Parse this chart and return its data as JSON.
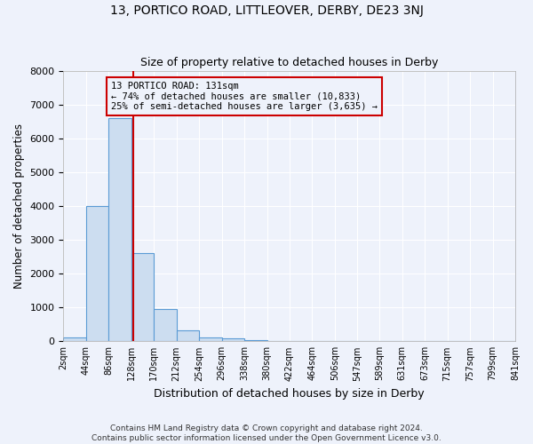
{
  "title": "13, PORTICO ROAD, LITTLEOVER, DERBY, DE23 3NJ",
  "subtitle": "Size of property relative to detached houses in Derby",
  "xlabel": "Distribution of detached houses by size in Derby",
  "ylabel": "Number of detached properties",
  "footer_line1": "Contains HM Land Registry data © Crown copyright and database right 2024.",
  "footer_line2": "Contains public sector information licensed under the Open Government Licence v3.0.",
  "bin_labels": [
    "2sqm",
    "44sqm",
    "86sqm",
    "128sqm",
    "170sqm",
    "212sqm",
    "254sqm",
    "296sqm",
    "338sqm",
    "380sqm",
    "422sqm",
    "464sqm",
    "506sqm",
    "547sqm",
    "589sqm",
    "631sqm",
    "673sqm",
    "715sqm",
    "757sqm",
    "799sqm",
    "841sqm"
  ],
  "bin_edges": [
    2,
    44,
    86,
    128,
    170,
    212,
    254,
    296,
    338,
    380,
    422,
    464,
    506,
    547,
    589,
    631,
    673,
    715,
    757,
    799,
    841
  ],
  "bar_heights": [
    100,
    4000,
    6600,
    2600,
    950,
    320,
    120,
    80,
    30,
    15,
    8,
    4,
    2,
    1,
    1,
    1,
    0,
    0,
    0,
    0
  ],
  "bar_color": "#ccddf0",
  "bar_edge_color": "#5b9bd5",
  "property_size": 131,
  "annotation_title": "13 PORTICO ROAD: 131sqm",
  "annotation_line2": "← 74% of detached houses are smaller (10,833)",
  "annotation_line3": "25% of semi-detached houses are larger (3,635) →",
  "annotation_box_color": "#cc0000",
  "vline_color": "#cc0000",
  "ylim": [
    0,
    8000
  ],
  "yticks": [
    0,
    1000,
    2000,
    3000,
    4000,
    5000,
    6000,
    7000,
    8000
  ],
  "background_color": "#eef2fb",
  "grid_color": "#ffffff",
  "plot_bg_color": "#eef2fb"
}
